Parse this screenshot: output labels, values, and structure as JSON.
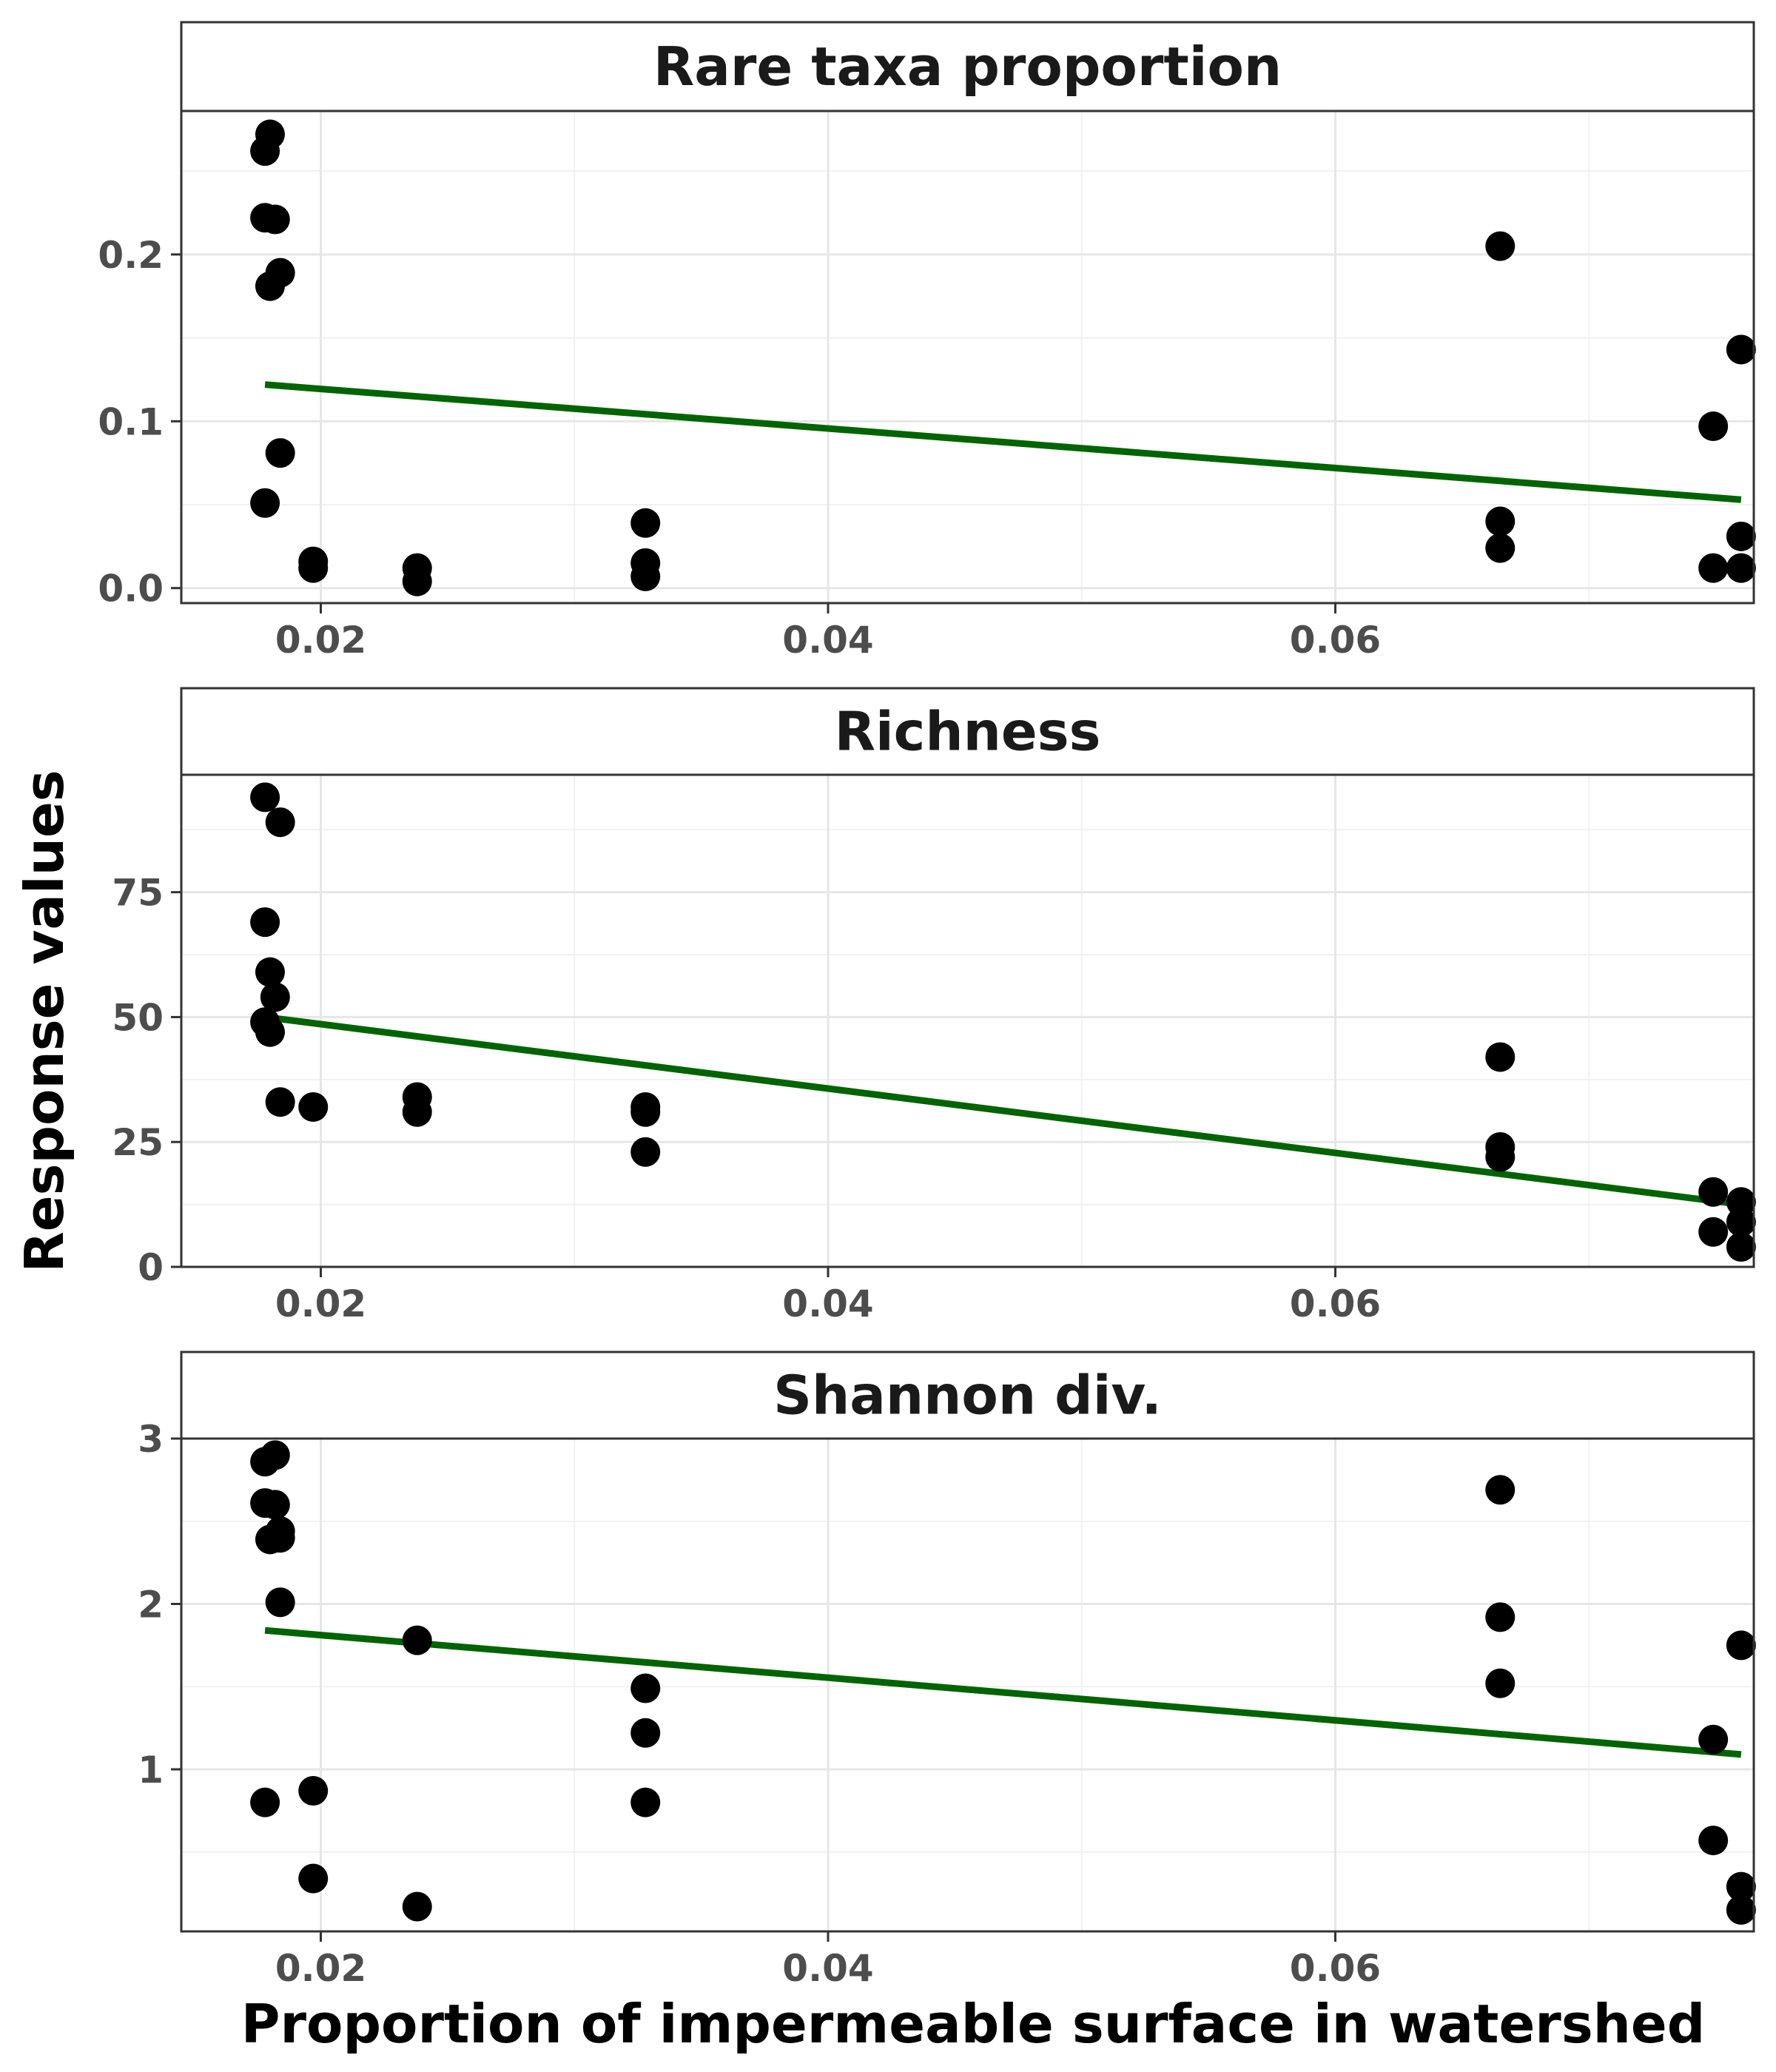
{
  "chart_data": {
    "type": "scatter",
    "xlabel": "Proportion of impermeable surface in watershed",
    "ylabel": "Response values",
    "xlim": [
      0.0145,
      0.0765
    ],
    "x_ticks": [
      0.02,
      0.04,
      0.06
    ],
    "x_tick_labels": [
      "0.02",
      "0.04",
      "0.06"
    ],
    "grid": true,
    "fit_line_color": "#006400",
    "point_color": "#000000",
    "panels": [
      {
        "title": "Rare taxa proportion",
        "ylim": [
          -0.009,
          0.286
        ],
        "y_ticks": [
          0.0,
          0.1,
          0.2
        ],
        "y_tick_labels": [
          "0.0",
          "0.1",
          "0.2"
        ],
        "points": [
          [
            0.0178,
            0.262
          ],
          [
            0.018,
            0.272
          ],
          [
            0.0178,
            0.222
          ],
          [
            0.0182,
            0.221
          ],
          [
            0.0184,
            0.189
          ],
          [
            0.018,
            0.181
          ],
          [
            0.0184,
            0.081
          ],
          [
            0.0178,
            0.051
          ],
          [
            0.0197,
            0.016
          ],
          [
            0.0197,
            0.012
          ],
          [
            0.0238,
            0.012
          ],
          [
            0.0238,
            0.004
          ],
          [
            0.0328,
            0.039
          ],
          [
            0.0328,
            0.015
          ],
          [
            0.0328,
            0.007
          ],
          [
            0.0665,
            0.205
          ],
          [
            0.0665,
            0.04
          ],
          [
            0.0665,
            0.024
          ],
          [
            0.0749,
            0.097
          ],
          [
            0.076,
            0.143
          ],
          [
            0.076,
            0.031
          ],
          [
            0.0749,
            0.012
          ],
          [
            0.076,
            0.012
          ]
        ],
        "fit": [
          [
            0.0178,
            0.122
          ],
          [
            0.076,
            0.053
          ]
        ]
      },
      {
        "title": "Richness",
        "ylim": [
          0,
          98.5
        ],
        "y_ticks": [
          0,
          25,
          50,
          75
        ],
        "y_tick_labels": [
          "0",
          "25",
          "50",
          "75"
        ],
        "points": [
          [
            0.0178,
            94
          ],
          [
            0.0184,
            89
          ],
          [
            0.0178,
            69
          ],
          [
            0.018,
            59
          ],
          [
            0.0182,
            54
          ],
          [
            0.0178,
            49
          ],
          [
            0.018,
            47
          ],
          [
            0.0184,
            33
          ],
          [
            0.0197,
            32
          ],
          [
            0.0238,
            34
          ],
          [
            0.0238,
            31
          ],
          [
            0.0328,
            32
          ],
          [
            0.0328,
            31
          ],
          [
            0.0328,
            23
          ],
          [
            0.0665,
            42
          ],
          [
            0.0665,
            24
          ],
          [
            0.0665,
            22
          ],
          [
            0.0749,
            15
          ],
          [
            0.0749,
            7
          ],
          [
            0.076,
            13
          ],
          [
            0.076,
            9
          ],
          [
            0.076,
            4
          ]
        ],
        "fit": [
          [
            0.0178,
            50
          ],
          [
            0.076,
            12.5
          ]
        ]
      },
      {
        "title": "Shannon div.",
        "ylim": [
          0.02,
          3.0
        ],
        "y_ticks": [
          1,
          2,
          3
        ],
        "y_tick_labels": [
          "1",
          "2",
          "3"
        ],
        "points": [
          [
            0.0178,
            2.86
          ],
          [
            0.0182,
            2.9
          ],
          [
            0.0178,
            2.61
          ],
          [
            0.0182,
            2.6
          ],
          [
            0.0184,
            2.44
          ],
          [
            0.018,
            2.39
          ],
          [
            0.0184,
            2.4
          ],
          [
            0.0184,
            2.01
          ],
          [
            0.0178,
            0.8
          ],
          [
            0.0197,
            0.87
          ],
          [
            0.0197,
            0.34
          ],
          [
            0.0238,
            1.78
          ],
          [
            0.0238,
            0.17
          ],
          [
            0.0328,
            1.49
          ],
          [
            0.0328,
            1.22
          ],
          [
            0.0328,
            0.8
          ],
          [
            0.0665,
            2.69
          ],
          [
            0.0665,
            1.92
          ],
          [
            0.0665,
            1.52
          ],
          [
            0.076,
            1.75
          ],
          [
            0.0749,
            1.18
          ],
          [
            0.0749,
            0.57
          ],
          [
            0.076,
            0.29
          ],
          [
            0.076,
            0.15
          ]
        ],
        "fit": [
          [
            0.0178,
            1.84
          ],
          [
            0.076,
            1.09
          ]
        ]
      }
    ]
  }
}
